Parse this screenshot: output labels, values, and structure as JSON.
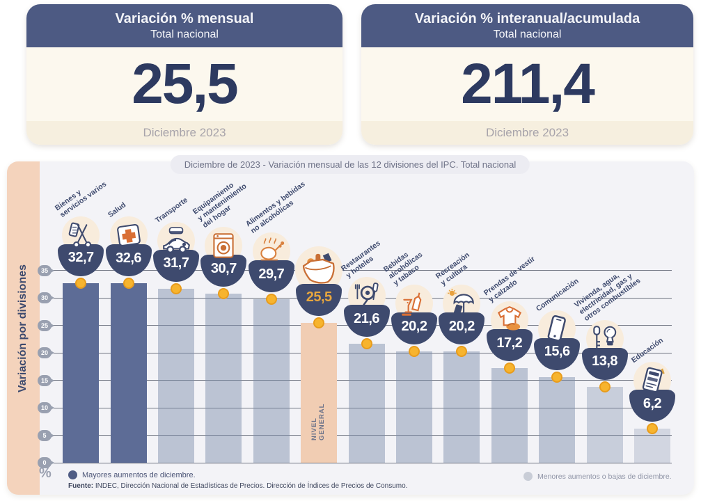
{
  "cards": [
    {
      "title": "Variación % mensual",
      "subtitle": "Total nacional",
      "value": "25,5",
      "period": "Diciembre 2023"
    },
    {
      "title": "Variación % interanual/acumulada",
      "subtitle": "Total nacional",
      "value": "211,4",
      "period": "Diciembre 2023"
    }
  ],
  "chart_data": {
    "type": "bar",
    "title": "Diciembre de 2023 - Variación mensual de las 12 divisiones del IPC. Total nacional",
    "side_label": "Variación por divisiones",
    "unit_label": "%",
    "ylim": [
      0,
      35
    ],
    "yticks": [
      0,
      5,
      10,
      15,
      20,
      25,
      30,
      35
    ],
    "grid": true,
    "categories": [
      "Bienes y servicios varios",
      "Salud",
      "Transporte",
      "Equipamiento y mantenimiento del hogar",
      "Alimentos y bebidas no alcohólicas",
      "Nivel general",
      "Restaurantes y hoteles",
      "Bebidas alcohólicas y tabaco",
      "Recreación y cultura",
      "Prendas de vestir y calzado",
      "Comunicación",
      "Vivienda, agua, electricidad, gas y otros combustibles",
      "Educación"
    ],
    "values": [
      32.7,
      32.6,
      31.7,
      30.7,
      29.7,
      25.5,
      21.6,
      20.2,
      20.2,
      17.2,
      15.6,
      13.8,
      6.2
    ],
    "bars": [
      {
        "label": "Bienes y servicios varios",
        "label_lines": [
          "Bienes y",
          "servicios varios"
        ],
        "value": 32.7,
        "display": "32,7",
        "group": "dark",
        "icon": "comb-scissors"
      },
      {
        "label": "Salud",
        "label_lines": [
          "Salud"
        ],
        "value": 32.6,
        "display": "32,6",
        "group": "dark",
        "icon": "first-aid"
      },
      {
        "label": "Transporte",
        "label_lines": [
          "Transporte"
        ],
        "value": 31.7,
        "display": "31,7",
        "group": "light",
        "icon": "car-cap"
      },
      {
        "label": "Equipamiento y mantenimiento del hogar",
        "label_lines": [
          "Equipamiento",
          "y mantenimiento",
          "del hogar"
        ],
        "value": 30.7,
        "display": "30,7",
        "group": "light",
        "icon": "washing-machine"
      },
      {
        "label": "Alimentos y bebidas no alcohólicas",
        "label_lines": [
          "Alimentos y bebidas",
          "no alcohólicas"
        ],
        "value": 29.7,
        "display": "29,7",
        "group": "light",
        "icon": "roast-chicken"
      },
      {
        "label": "Nivel general",
        "label_lines": [],
        "inner_label_lines": [
          "NIVEL",
          "GENERAL"
        ],
        "value": 25.5,
        "display": "25,5",
        "group": "general",
        "icon": "grocery-bag",
        "big_icon": true,
        "gold_value": true
      },
      {
        "label": "Restaurantes y hoteles",
        "label_lines": [
          "Restaurantes",
          "y hoteles"
        ],
        "value": 21.6,
        "display": "21,6",
        "group": "light",
        "icon": "pan-utensils"
      },
      {
        "label": "Bebidas alcohólicas y tabaco",
        "label_lines": [
          "Bebidas",
          "alcohólicas",
          "y tabaco"
        ],
        "value": 20.2,
        "display": "20,2",
        "group": "light",
        "icon": "bottle-glass"
      },
      {
        "label": "Recreación y cultura",
        "label_lines": [
          "Recreación",
          "y cultura"
        ],
        "value": 20.2,
        "display": "20,2",
        "group": "light",
        "icon": "umbrella-sun"
      },
      {
        "label": "Prendas de vestir y calzado",
        "label_lines": [
          "Prendas de vestir",
          "y calzado"
        ],
        "value": 17.2,
        "display": "17,2",
        "group": "light",
        "icon": "tshirt-shoe"
      },
      {
        "label": "Comunicación",
        "label_lines": [
          "Comunicación"
        ],
        "value": 15.6,
        "display": "15,6",
        "group": "light",
        "icon": "smartphone"
      },
      {
        "label": "Vivienda, agua, electricidad, gas y otros combustibles",
        "label_lines": [
          "Vivienda, agua,",
          "electricidad, gas y",
          "otros combustibles"
        ],
        "value": 13.8,
        "display": "13,8",
        "group": "light2",
        "icon": "key-lightbulb"
      },
      {
        "label": "Educación",
        "label_lines": [
          "Educación"
        ],
        "value": 6.2,
        "display": "6,2",
        "group": "light3",
        "icon": "notebook"
      }
    ],
    "legend": [
      {
        "label": "Mayores aumentos de diciembre.",
        "color": "#4f5c84"
      },
      {
        "label": "Menores aumentos o bajas de diciembre.",
        "color": "#c9cdd7"
      }
    ],
    "source": {
      "prefix": "Fuente:",
      "text": " INDEC, Dirección Nacional de Estadísticas de Precios. Dirección de Índices de Precios de Consumo."
    }
  },
  "colors": {
    "header_bg": "#4d5a83",
    "card_body": "#fcf8ee",
    "card_footer": "#f6efdf",
    "number_navy": "#2d3a60",
    "panel_bg": "#f3f3f7",
    "strip_peach": "#f4d3bc",
    "bar_dark": "#5d6c96",
    "bar_light": "#b5c0d0",
    "bar_general": "#f1cdb3",
    "bowl_navy": "#3e4a6e",
    "value_gold": "#e7a63e",
    "dot_gold": "#f2a71f",
    "icon_orange": "#d97f3c"
  }
}
